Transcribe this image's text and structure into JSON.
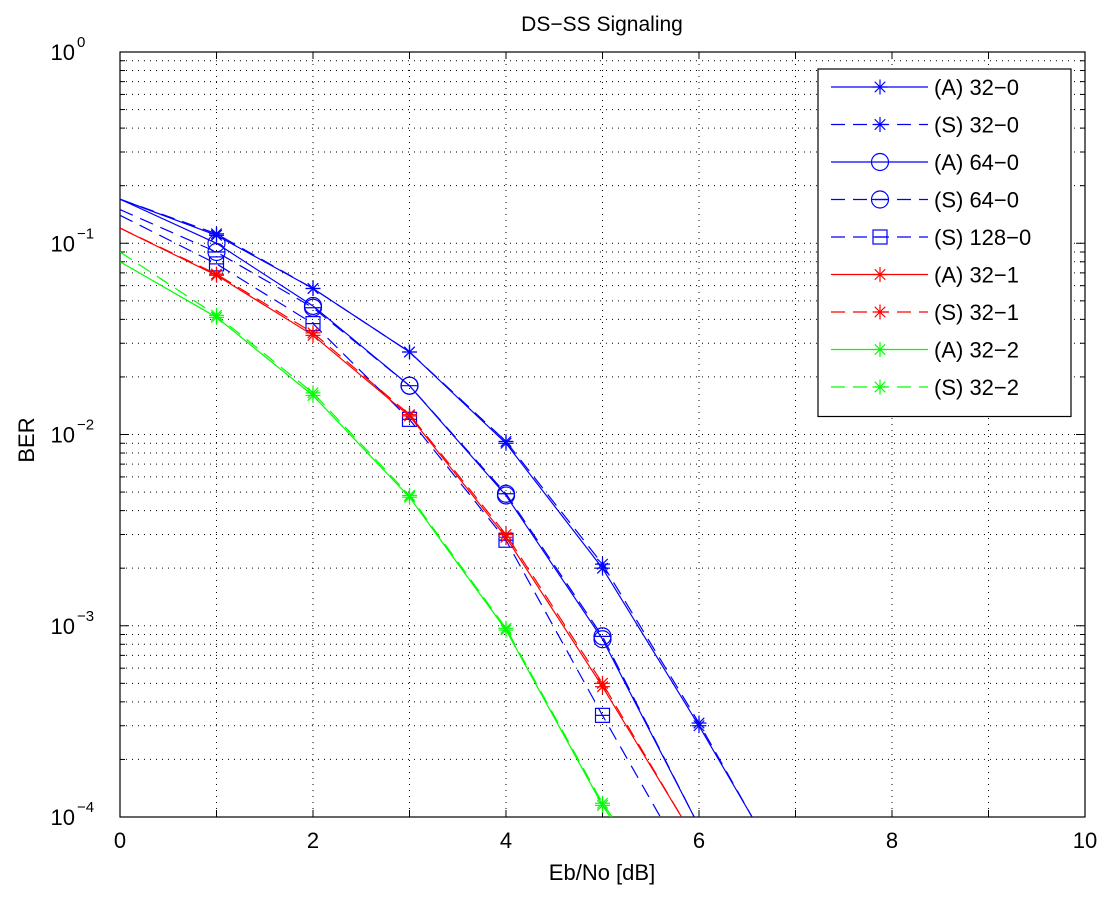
{
  "chart_data": {
    "type": "line",
    "title": "DS−SS Signaling",
    "xlabel": "Eb/No [dB]",
    "ylabel": "BER",
    "xlim": [
      0,
      10
    ],
    "ylim": [
      0.0001,
      1
    ],
    "yscale": "log",
    "grid": true,
    "legend_position": "top-right",
    "x_ticks": [
      "0",
      "2",
      "4",
      "6",
      "8",
      "10"
    ],
    "y_ticks": [
      {
        "base": "10",
        "exp": "−4",
        "value": 0.0001
      },
      {
        "base": "10",
        "exp": "−3",
        "value": 0.001
      },
      {
        "base": "10",
        "exp": "−2",
        "value": 0.01
      },
      {
        "base": "10",
        "exp": "−1",
        "value": 0.1
      },
      {
        "base": "10",
        "exp": "0",
        "value": 1
      }
    ],
    "series": [
      {
        "name": "(A) 32−0",
        "color": "#0000ff",
        "dash": "solid",
        "marker": "star",
        "x": [
          0,
          1,
          2,
          3,
          4,
          5,
          6,
          6.55
        ],
        "y": [
          0.17,
          0.11,
          0.058,
          0.027,
          0.009,
          0.002,
          0.0003,
          0.0001
        ],
        "marker_x": [
          1,
          2,
          3,
          4,
          5,
          6
        ]
      },
      {
        "name": "(S) 32−0",
        "color": "#0000ff",
        "dash": "dashed",
        "marker": "star",
        "x": [
          0,
          1,
          2,
          3,
          4,
          5,
          6,
          6.55
        ],
        "y": [
          0.17,
          0.112,
          0.058,
          0.027,
          0.0092,
          0.0021,
          0.00031,
          0.0001
        ],
        "marker_x": [
          1,
          2,
          3,
          4,
          5,
          6
        ]
      },
      {
        "name": "(A) 64−0",
        "color": "#0000ff",
        "dash": "solid",
        "marker": "circle",
        "x": [
          0,
          1,
          2,
          3,
          4,
          5,
          5.95
        ],
        "y": [
          0.17,
          0.1,
          0.047,
          0.018,
          0.0048,
          0.00085,
          0.0001
        ],
        "marker_x": [
          1,
          2,
          3,
          4,
          5
        ]
      },
      {
        "name": "(S) 64−0",
        "color": "#0000ff",
        "dash": "dashed",
        "marker": "circle-line",
        "x": [
          0,
          1,
          2,
          3,
          4,
          5,
          5.95
        ],
        "y": [
          0.15,
          0.09,
          0.046,
          0.018,
          0.0049,
          0.00088,
          0.0001
        ],
        "marker_x": [
          1,
          2,
          3,
          4,
          5
        ]
      },
      {
        "name": "(S) 128−0",
        "color": "#0000ff",
        "dash": "dashed",
        "marker": "square",
        "x": [
          0,
          1,
          2,
          3,
          4,
          5,
          5.6
        ],
        "y": [
          0.14,
          0.078,
          0.038,
          0.012,
          0.0028,
          0.00034,
          0.0001
        ],
        "marker_x": [
          1,
          2,
          3,
          4,
          5
        ]
      },
      {
        "name": "(A) 32−1",
        "color": "#ff0000",
        "dash": "solid",
        "marker": "star",
        "x": [
          0,
          1,
          2,
          3,
          4,
          5,
          5.82
        ],
        "y": [
          0.12,
          0.068,
          0.033,
          0.0125,
          0.0029,
          0.00048,
          0.0001
        ],
        "marker_x": [
          1,
          2,
          3,
          4,
          5
        ]
      },
      {
        "name": "(S) 32−1",
        "color": "#ff0000",
        "dash": "dashed",
        "marker": "star",
        "x": [
          0,
          1,
          2,
          3,
          4,
          5,
          5.82
        ],
        "y": [
          0.12,
          0.069,
          0.034,
          0.0127,
          0.003,
          0.0005,
          0.0001
        ],
        "marker_x": [
          1,
          2,
          3,
          4,
          5
        ]
      },
      {
        "name": "(A) 32−2",
        "color": "#00ff00",
        "dash": "solid",
        "marker": "star",
        "x": [
          0,
          1,
          2,
          3,
          4,
          5,
          5.08
        ],
        "y": [
          0.08,
          0.041,
          0.016,
          0.0047,
          0.00095,
          0.000115,
          0.0001
        ],
        "marker_x": [
          1,
          2,
          3,
          4,
          5
        ]
      },
      {
        "name": "(S) 32−2",
        "color": "#00ff00",
        "dash": "dashed",
        "marker": "star",
        "x": [
          0,
          1,
          2,
          3,
          4,
          5,
          5.1
        ],
        "y": [
          0.09,
          0.042,
          0.0165,
          0.0048,
          0.00097,
          0.000118,
          0.0001
        ],
        "marker_x": [
          1,
          2,
          3,
          4,
          5
        ]
      }
    ]
  }
}
